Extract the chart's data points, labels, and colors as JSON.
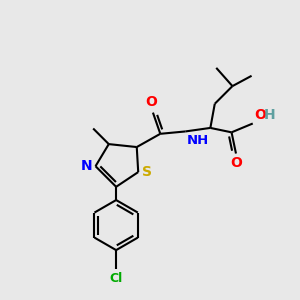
{
  "bg_color": "#e8e8e8",
  "bond_color": "#000000",
  "n_color": "#0000ff",
  "o_color": "#ff0000",
  "s_color": "#ccaa00",
  "cl_color": "#00aa00",
  "line_width": 1.5,
  "figsize": [
    3.0,
    3.0
  ],
  "dpi": 100,
  "xlim": [
    0,
    10
  ],
  "ylim": [
    0,
    10
  ]
}
